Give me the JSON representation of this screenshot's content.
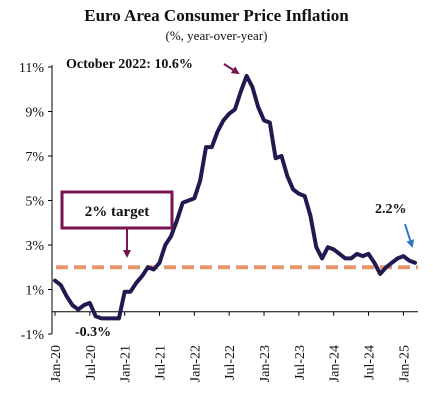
{
  "chart_data": {
    "type": "line",
    "title": "Euro Area Consumer Price Inflation",
    "subtitle": "(%, year-over-year)",
    "xlabel": "",
    "ylabel": "",
    "y_ticks": [
      "11%",
      "9%",
      "7%",
      "5%",
      "3%",
      "1%",
      "-1%"
    ],
    "y_tick_values": [
      11,
      9,
      7,
      5,
      3,
      1,
      -1
    ],
    "ylim": [
      -1,
      11
    ],
    "x_ticks": [
      "Jan-20",
      "Jul-20",
      "Jan-21",
      "Jul-21",
      "Jan-22",
      "Jul-22",
      "Jan-23",
      "Jul-23",
      "Jan-24",
      "Jul-24",
      "Jan-25"
    ],
    "x_tick_months": [
      "2020-01",
      "2020-07",
      "2021-01",
      "2021-07",
      "2022-01",
      "2022-07",
      "2023-01",
      "2023-07",
      "2024-01",
      "2024-07",
      "2025-01"
    ],
    "grid": false,
    "series": [
      {
        "color": "#1f1a4f",
        "points": [
          [
            "2020-01",
            1.4
          ],
          [
            "2020-02",
            1.2
          ],
          [
            "2020-03",
            0.7
          ],
          [
            "2020-04",
            0.3
          ],
          [
            "2020-05",
            0.1
          ],
          [
            "2020-06",
            0.3
          ],
          [
            "2020-07",
            0.4
          ],
          [
            "2020-08",
            -0.2
          ],
          [
            "2020-09",
            -0.3
          ],
          [
            "2020-10",
            -0.3
          ],
          [
            "2020-11",
            -0.3
          ],
          [
            "2020-12",
            -0.3
          ],
          [
            "2021-01",
            0.9
          ],
          [
            "2021-02",
            0.9
          ],
          [
            "2021-03",
            1.3
          ],
          [
            "2021-04",
            1.6
          ],
          [
            "2021-05",
            2.0
          ],
          [
            "2021-06",
            1.9
          ],
          [
            "2021-07",
            2.2
          ],
          [
            "2021-08",
            3.0
          ],
          [
            "2021-09",
            3.4
          ],
          [
            "2021-10",
            4.1
          ],
          [
            "2021-11",
            4.9
          ],
          [
            "2021-12",
            5.0
          ],
          [
            "2022-01",
            5.1
          ],
          [
            "2022-02",
            5.9
          ],
          [
            "2022-03",
            7.4
          ],
          [
            "2022-04",
            7.4
          ],
          [
            "2022-05",
            8.1
          ],
          [
            "2022-06",
            8.6
          ],
          [
            "2022-07",
            8.9
          ],
          [
            "2022-08",
            9.1
          ],
          [
            "2022-09",
            9.9
          ],
          [
            "2022-10",
            10.6
          ],
          [
            "2022-11",
            10.1
          ],
          [
            "2022-12",
            9.2
          ],
          [
            "2023-01",
            8.6
          ],
          [
            "2023-02",
            8.5
          ],
          [
            "2023-03",
            6.9
          ],
          [
            "2023-04",
            7.0
          ],
          [
            "2023-05",
            6.1
          ],
          [
            "2023-06",
            5.5
          ],
          [
            "2023-07",
            5.3
          ],
          [
            "2023-08",
            5.2
          ],
          [
            "2023-09",
            4.3
          ],
          [
            "2023-10",
            2.9
          ],
          [
            "2023-11",
            2.4
          ],
          [
            "2023-12",
            2.9
          ],
          [
            "2024-01",
            2.8
          ],
          [
            "2024-02",
            2.6
          ],
          [
            "2024-03",
            2.4
          ],
          [
            "2024-04",
            2.4
          ],
          [
            "2024-05",
            2.6
          ],
          [
            "2024-06",
            2.5
          ],
          [
            "2024-07",
            2.6
          ],
          [
            "2024-08",
            2.2
          ],
          [
            "2024-09",
            1.7
          ],
          [
            "2024-10",
            2.0
          ],
          [
            "2024-11",
            2.2
          ],
          [
            "2024-12",
            2.4
          ],
          [
            "2025-01",
            2.5
          ],
          [
            "2025-02",
            2.3
          ],
          [
            "2025-03",
            2.2
          ]
        ]
      }
    ],
    "reference_lines": [
      {
        "label": "2% target",
        "y": 2,
        "color": "#e8956c",
        "style": "dashed"
      }
    ],
    "annotations": [
      {
        "text": "October 2022: 10.6%",
        "x": "2022-10",
        "y": 10.6,
        "color": "#7a1450"
      },
      {
        "text": "2.2%",
        "x": "2025-03",
        "y": 2.2,
        "color": "#2a78c8"
      },
      {
        "text": "-0.3%",
        "x": "2020-09",
        "y": -0.3,
        "color": "#111111"
      }
    ]
  }
}
